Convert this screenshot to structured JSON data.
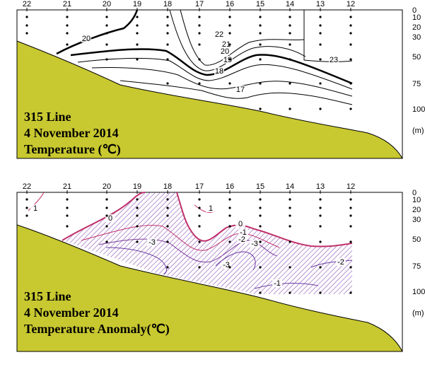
{
  "chart_data": [
    {
      "type": "contour-section",
      "stations": [
        "22",
        "21",
        "20",
        "19",
        "18",
        "17",
        "16",
        "15",
        "14",
        "13",
        "12"
      ],
      "depth_ticks": [
        "0",
        "10",
        "20",
        "30",
        "50",
        "75",
        "100"
      ],
      "depth_unit": "(m)",
      "caption": [
        "315 Line",
        "4 November 2014",
        "Temperature (℃)"
      ],
      "contour_labels": [
        "20",
        "22",
        "21",
        "20",
        "19",
        "23",
        "18",
        "17"
      ],
      "colors": {
        "seabed": "#c8c830",
        "contour": "#000000"
      }
    },
    {
      "type": "contour-section",
      "stations": [
        "22",
        "21",
        "20",
        "19",
        "18",
        "17",
        "16",
        "15",
        "14",
        "13",
        "12"
      ],
      "depth_ticks": [
        "0",
        "10",
        "20",
        "30",
        "50",
        "75",
        "100"
      ],
      "depth_unit": "(m)",
      "caption": [
        "315 Line",
        "4 November 2014",
        "Temperature Anomaly(℃)"
      ],
      "contour_labels": [
        "1",
        "0",
        "1",
        "0",
        "-1",
        "-2",
        "-3",
        "-3",
        "-3",
        "-2",
        "-1"
      ],
      "colors": {
        "seabed": "#c8c830",
        "positive": "#c0306a",
        "negative": "#6a3ca0",
        "hatch": "#8a50b4"
      }
    }
  ]
}
